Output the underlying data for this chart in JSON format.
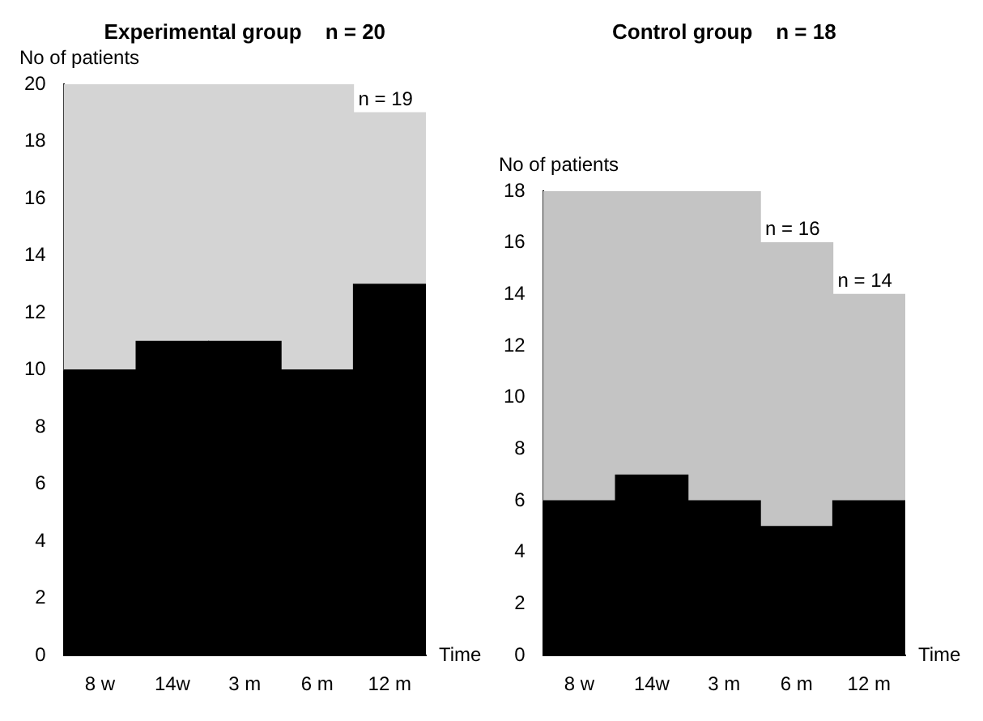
{
  "chart_data": [
    {
      "type": "bar",
      "title": "Experimental group    n = 20",
      "xlabel": "Time",
      "ylabel": "No of patients",
      "categories": [
        "8 w",
        "14w",
        "3 m",
        "6 m",
        "12 m"
      ],
      "stacked": true,
      "series": [
        {
          "color": "#000000",
          "values": [
            10,
            11,
            11,
            10,
            13
          ]
        },
        {
          "color": "#d4d4d4",
          "values": [
            10,
            9,
            9,
            10,
            6
          ]
        }
      ],
      "ylim": [
        0,
        20
      ],
      "yticks": [
        0,
        2,
        4,
        6,
        8,
        10,
        12,
        14,
        16,
        18,
        20
      ],
      "annotations": [
        {
          "text": "n = 19",
          "x": "12 m",
          "y": 19
        }
      ]
    },
    {
      "type": "bar",
      "title": "Control group    n = 18",
      "xlabel": "Time",
      "ylabel": "No of patients",
      "categories": [
        "8 w",
        "14w",
        "3 m",
        "6 m",
        "12 m"
      ],
      "stacked": true,
      "series": [
        {
          "color": "#000000",
          "values": [
            6,
            7,
            6,
            5,
            6
          ]
        },
        {
          "color": "#c4c4c4",
          "values": [
            12,
            11,
            12,
            11,
            8
          ]
        }
      ],
      "ylim": [
        0,
        18
      ],
      "yticks": [
        0,
        2,
        4,
        6,
        8,
        10,
        12,
        14,
        16,
        18
      ],
      "annotations": [
        {
          "text": "n = 16",
          "x": "6 m",
          "y": 16
        },
        {
          "text": "n = 14",
          "x": "12 m",
          "y": 14
        }
      ]
    }
  ]
}
